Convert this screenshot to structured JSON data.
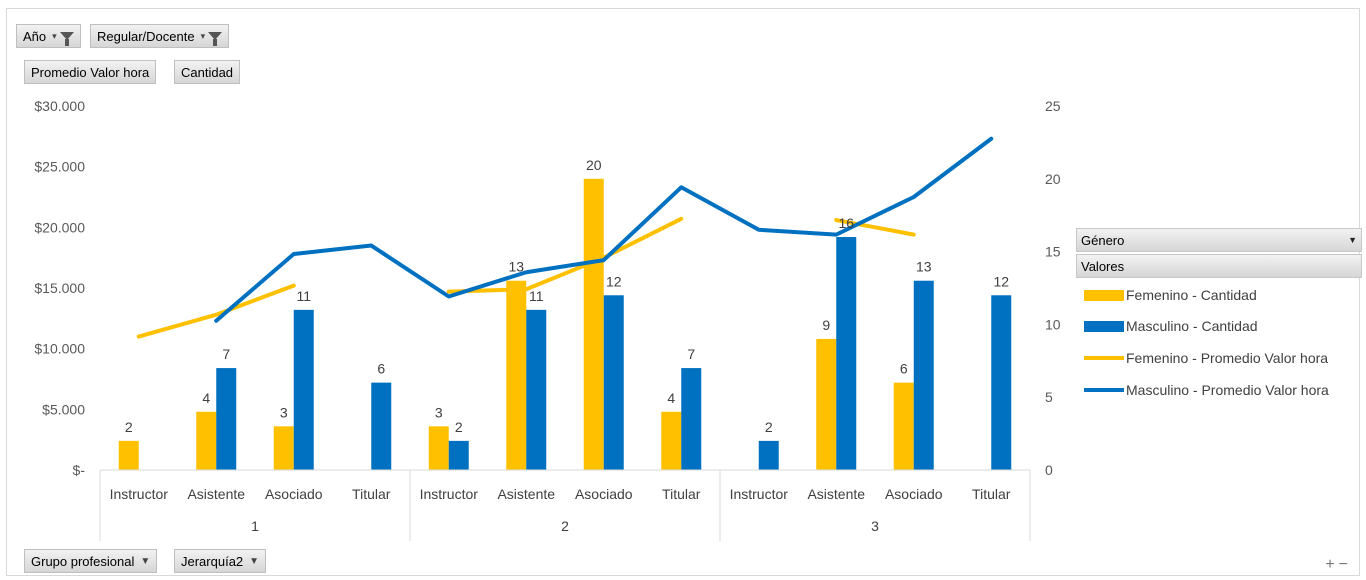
{
  "filters": [
    {
      "label": "Año",
      "icon": "filter-icon"
    },
    {
      "label": "Regular/Docente",
      "icon": "filter-icon"
    }
  ],
  "value_fields": [
    "Promedio Valor hora",
    "Cantidad"
  ],
  "row_fields": [
    {
      "label": "Grupo profesional",
      "icon": "dropdown-icon"
    },
    {
      "label": "Jerarquía2",
      "icon": "dropdown-icon"
    }
  ],
  "legend": {
    "title": "Género",
    "values_header": "Valores",
    "items": [
      {
        "label": "Femenino - Cantidad",
        "kind": "bar",
        "color": "#FFC000"
      },
      {
        "label": "Masculino - Cantidad",
        "kind": "bar",
        "color": "#0070C0"
      },
      {
        "label": "Femenino - Promedio Valor hora",
        "kind": "line",
        "color": "#FFC000"
      },
      {
        "label": "Masculino - Promedio Valor hora",
        "kind": "line",
        "color": "#0070C0"
      }
    ]
  },
  "zoom_controls": {
    "plus": "+",
    "minus": "−"
  },
  "chart_data": {
    "type": "bar",
    "combo": "clustered bar (secondary axis) + line (primary axis)",
    "groups": [
      {
        "label": "1",
        "categories": [
          "Instructor",
          "Asistente",
          "Asociado",
          "Titular"
        ]
      },
      {
        "label": "2",
        "categories": [
          "Instructor",
          "Asistente",
          "Asociado",
          "Titular"
        ]
      },
      {
        "label": "3",
        "categories": [
          "Instructor",
          "Asistente",
          "Asociado",
          "Titular"
        ]
      }
    ],
    "y_left": {
      "ticks": [
        "$30.000",
        "$25.000",
        "$20.000",
        "$15.000",
        "$10.000",
        "$5.000",
        "$-"
      ],
      "range": [
        0,
        30000
      ]
    },
    "y_right": {
      "ticks": [
        "25",
        "20",
        "15",
        "10",
        "5",
        "0"
      ],
      "range": [
        0,
        25
      ]
    },
    "series": [
      {
        "name": "Femenino - Cantidad",
        "type": "bar",
        "axis": "right",
        "color": "#FFC000",
        "values": [
          2,
          4,
          3,
          null,
          3,
          13,
          20,
          4,
          null,
          9,
          6,
          null
        ]
      },
      {
        "name": "Masculino - Cantidad",
        "type": "bar",
        "axis": "right",
        "color": "#0070C0",
        "values": [
          null,
          7,
          11,
          6,
          2,
          11,
          12,
          7,
          2,
          16,
          13,
          12
        ]
      },
      {
        "name": "Femenino - Promedio Valor hora",
        "type": "line",
        "axis": "left",
        "color": "#FFC000",
        "values": [
          11000,
          12800,
          15200,
          null,
          14700,
          14900,
          17500,
          20700,
          null,
          20600,
          19400,
          null
        ]
      },
      {
        "name": "Masculino - Promedio Valor hora",
        "type": "line",
        "axis": "left",
        "color": "#0070C0",
        "values": [
          null,
          12300,
          17800,
          18500,
          14300,
          16300,
          17300,
          23300,
          19800,
          19400,
          22500,
          27300
        ]
      }
    ]
  }
}
